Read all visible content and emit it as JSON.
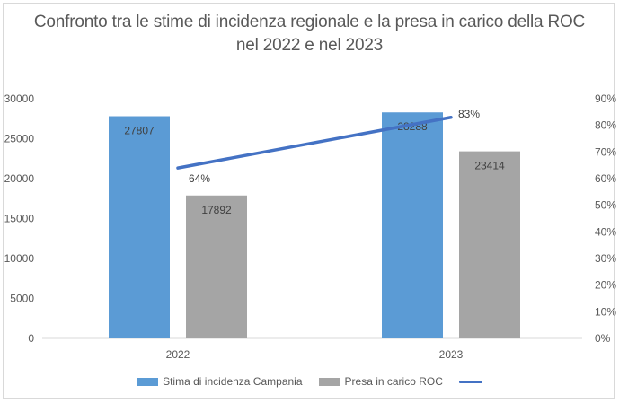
{
  "chart_data": {
    "type": "bar",
    "title_line1": "Confronto tra le stime di incidenza regionale e la presa in carico della ROC",
    "title_line2": "nel 2022 e nel 2023",
    "categories": [
      "2022",
      "2023"
    ],
    "series": [
      {
        "name": "Stima di incidenza Campania",
        "values": [
          27807,
          28288
        ],
        "color": "#5b9bd5",
        "axis": "left"
      },
      {
        "name": "Presa in carico ROC",
        "values": [
          17892,
          23414
        ],
        "color": "#a5a5a5",
        "axis": "left"
      },
      {
        "name": "",
        "type": "line",
        "values": [
          0.64,
          0.83
        ],
        "labels": [
          "64%",
          "83%"
        ],
        "color": "#4472c4",
        "axis": "right"
      }
    ],
    "ylim_left": [
      0,
      30000
    ],
    "yticks_left": [
      "0",
      "5000",
      "10000",
      "15000",
      "20000",
      "25000",
      "30000"
    ],
    "ylim_right": [
      0,
      0.9
    ],
    "yticks_right": [
      "0%",
      "10%",
      "20%",
      "30%",
      "40%",
      "50%",
      "60%",
      "70%",
      "80%",
      "90%"
    ],
    "grid": false,
    "legend": "bottom"
  }
}
